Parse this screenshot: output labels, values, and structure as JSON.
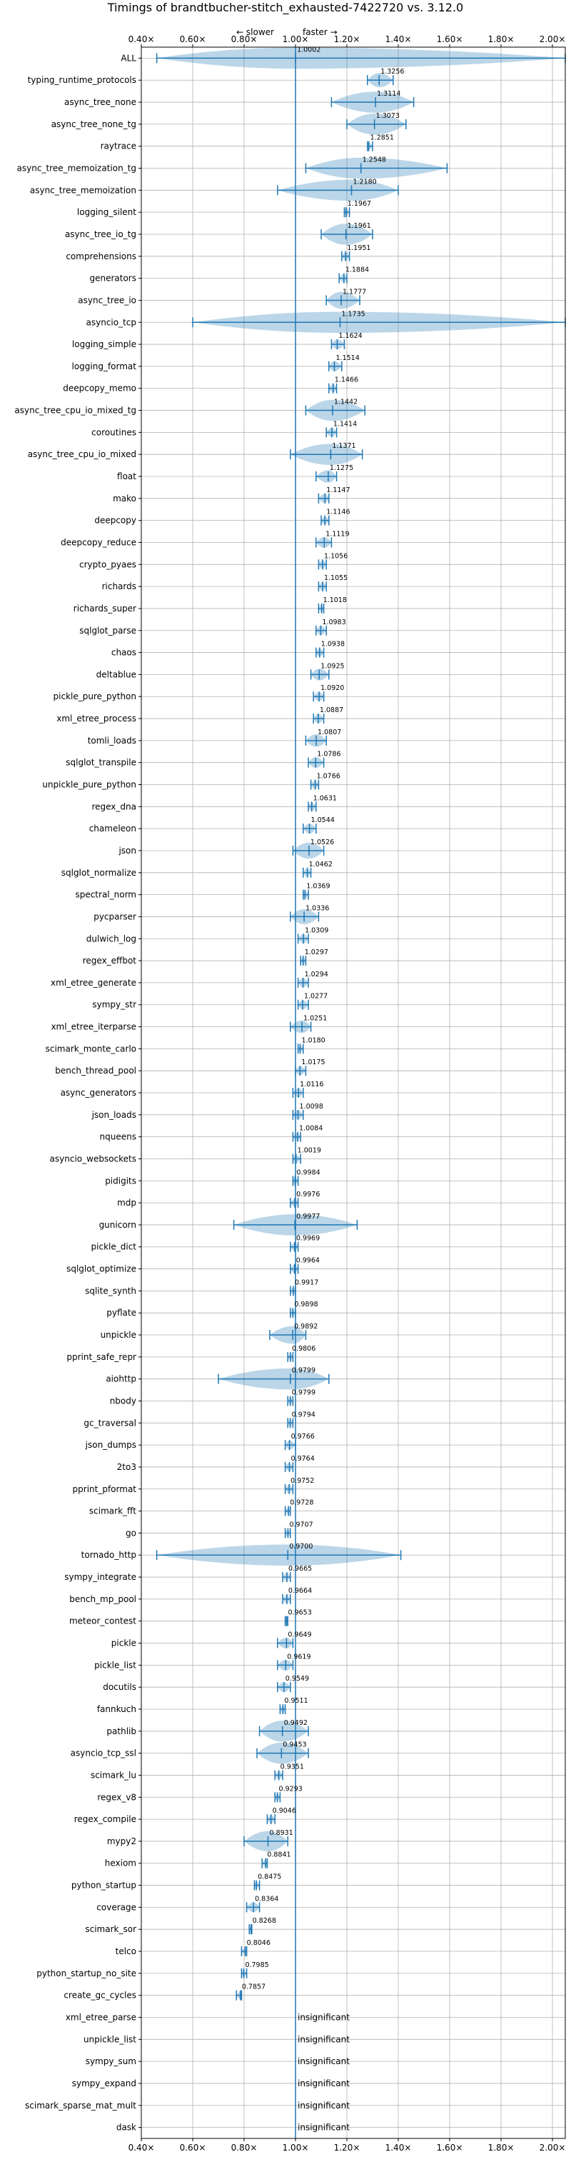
{
  "chart_data": {
    "type": "violin",
    "title": "Timings of brandtbucher-stitch_exhausted-7422720 vs. 3.12.0",
    "slower_label": "← slower",
    "faster_label": "faster →",
    "insignificant_label": "insignificant",
    "xlim": [
      0.4,
      2.05
    ],
    "xticks": [
      0.4,
      0.6,
      0.8,
      1.0,
      1.2,
      1.4,
      1.6,
      1.8,
      2.0
    ],
    "xtick_labels": [
      "0.40×",
      "0.60×",
      "0.80×",
      "1.00×",
      "1.20×",
      "1.40×",
      "1.60×",
      "1.80×",
      "2.00×"
    ],
    "reference_line": 1.0,
    "grid": true,
    "colors": {
      "line": "#1f77b4",
      "violin": "#1f77b4",
      "reference": "#1f77b4",
      "grid": "#b0b0b0"
    },
    "benchmarks": [
      {
        "name": "ALL",
        "value": "1.0002",
        "min": 0.46,
        "max": 2.05
      },
      {
        "name": "typing_runtime_protocols",
        "value": "1.3256",
        "min": 1.28,
        "max": 1.38
      },
      {
        "name": "async_tree_none",
        "value": "1.3114",
        "min": 1.14,
        "max": 1.46
      },
      {
        "name": "async_tree_none_tg",
        "value": "1.3073",
        "min": 1.2,
        "max": 1.43
      },
      {
        "name": "raytrace",
        "value": "1.2851",
        "min": 1.28,
        "max": 1.3
      },
      {
        "name": "async_tree_memoization_tg",
        "value": "1.2548",
        "min": 1.04,
        "max": 1.59
      },
      {
        "name": "async_tree_memoization",
        "value": "1.2180",
        "min": 0.93,
        "max": 1.4
      },
      {
        "name": "logging_silent",
        "value": "1.1967",
        "min": 1.19,
        "max": 1.21
      },
      {
        "name": "async_tree_io_tg",
        "value": "1.1961",
        "min": 1.1,
        "max": 1.3
      },
      {
        "name": "comprehensions",
        "value": "1.1951",
        "min": 1.18,
        "max": 1.21
      },
      {
        "name": "generators",
        "value": "1.1884",
        "min": 1.17,
        "max": 1.2
      },
      {
        "name": "async_tree_io",
        "value": "1.1777",
        "min": 1.12,
        "max": 1.25
      },
      {
        "name": "asyncio_tcp",
        "value": "1.1735",
        "min": 0.6,
        "max": 2.05
      },
      {
        "name": "logging_simple",
        "value": "1.1624",
        "min": 1.14,
        "max": 1.19
      },
      {
        "name": "logging_format",
        "value": "1.1514",
        "min": 1.13,
        "max": 1.18
      },
      {
        "name": "deepcopy_memo",
        "value": "1.1466",
        "min": 1.13,
        "max": 1.16
      },
      {
        "name": "async_tree_cpu_io_mixed_tg",
        "value": "1.1442",
        "min": 1.04,
        "max": 1.27
      },
      {
        "name": "coroutines",
        "value": "1.1414",
        "min": 1.12,
        "max": 1.16
      },
      {
        "name": "async_tree_cpu_io_mixed",
        "value": "1.1371",
        "min": 0.98,
        "max": 1.26
      },
      {
        "name": "float",
        "value": "1.1275",
        "min": 1.08,
        "max": 1.16
      },
      {
        "name": "mako",
        "value": "1.1147",
        "min": 1.09,
        "max": 1.13
      },
      {
        "name": "deepcopy",
        "value": "1.1146",
        "min": 1.1,
        "max": 1.13
      },
      {
        "name": "deepcopy_reduce",
        "value": "1.1119",
        "min": 1.08,
        "max": 1.14
      },
      {
        "name": "crypto_pyaes",
        "value": "1.1056",
        "min": 1.09,
        "max": 1.12
      },
      {
        "name": "richards",
        "value": "1.1055",
        "min": 1.09,
        "max": 1.12
      },
      {
        "name": "richards_super",
        "value": "1.1018",
        "min": 1.09,
        "max": 1.11
      },
      {
        "name": "sqlglot_parse",
        "value": "1.0983",
        "min": 1.08,
        "max": 1.12
      },
      {
        "name": "chaos",
        "value": "1.0938",
        "min": 1.08,
        "max": 1.11
      },
      {
        "name": "deltablue",
        "value": "1.0925",
        "min": 1.06,
        "max": 1.13
      },
      {
        "name": "pickle_pure_python",
        "value": "1.0920",
        "min": 1.07,
        "max": 1.11
      },
      {
        "name": "xml_etree_process",
        "value": "1.0887",
        "min": 1.07,
        "max": 1.11
      },
      {
        "name": "tomli_loads",
        "value": "1.0807",
        "min": 1.04,
        "max": 1.12
      },
      {
        "name": "sqlglot_transpile",
        "value": "1.0786",
        "min": 1.05,
        "max": 1.11
      },
      {
        "name": "unpickle_pure_python",
        "value": "1.0766",
        "min": 1.06,
        "max": 1.09
      },
      {
        "name": "regex_dna",
        "value": "1.0631",
        "min": 1.05,
        "max": 1.08
      },
      {
        "name": "chameleon",
        "value": "1.0544",
        "min": 1.03,
        "max": 1.08
      },
      {
        "name": "json",
        "value": "1.0526",
        "min": 0.99,
        "max": 1.11
      },
      {
        "name": "sqlglot_normalize",
        "value": "1.0462",
        "min": 1.03,
        "max": 1.06
      },
      {
        "name": "spectral_norm",
        "value": "1.0369",
        "min": 1.03,
        "max": 1.05
      },
      {
        "name": "pycparser",
        "value": "1.0336",
        "min": 0.98,
        "max": 1.09
      },
      {
        "name": "dulwich_log",
        "value": "1.0309",
        "min": 1.01,
        "max": 1.05
      },
      {
        "name": "regex_effbot",
        "value": "1.0297",
        "min": 1.02,
        "max": 1.04
      },
      {
        "name": "xml_etree_generate",
        "value": "1.0294",
        "min": 1.01,
        "max": 1.05
      },
      {
        "name": "sympy_str",
        "value": "1.0277",
        "min": 1.01,
        "max": 1.05
      },
      {
        "name": "xml_etree_iterparse",
        "value": "1.0251",
        "min": 0.98,
        "max": 1.06
      },
      {
        "name": "scimark_monte_carlo",
        "value": "1.0180",
        "min": 1.01,
        "max": 1.03
      },
      {
        "name": "bench_thread_pool",
        "value": "1.0175",
        "min": 1.0,
        "max": 1.04
      },
      {
        "name": "async_generators",
        "value": "1.0116",
        "min": 0.99,
        "max": 1.03
      },
      {
        "name": "json_loads",
        "value": "1.0098",
        "min": 0.99,
        "max": 1.03
      },
      {
        "name": "nqueens",
        "value": "1.0084",
        "min": 0.99,
        "max": 1.02
      },
      {
        "name": "asyncio_websockets",
        "value": "1.0019",
        "min": 0.99,
        "max": 1.02
      },
      {
        "name": "pidigits",
        "value": "0.9984",
        "min": 0.99,
        "max": 1.01
      },
      {
        "name": "mdp",
        "value": "0.9976",
        "min": 0.98,
        "max": 1.01
      },
      {
        "name": "gunicorn",
        "value": "0.9977",
        "min": 0.76,
        "max": 1.24
      },
      {
        "name": "pickle_dict",
        "value": "0.9969",
        "min": 0.98,
        "max": 1.01
      },
      {
        "name": "sqlglot_optimize",
        "value": "0.9964",
        "min": 0.98,
        "max": 1.01
      },
      {
        "name": "sqlite_synth",
        "value": "0.9917",
        "min": 0.98,
        "max": 1.0
      },
      {
        "name": "pyflate",
        "value": "0.9898",
        "min": 0.98,
        "max": 1.0
      },
      {
        "name": "unpickle",
        "value": "0.9892",
        "min": 0.9,
        "max": 1.04
      },
      {
        "name": "pprint_safe_repr",
        "value": "0.9806",
        "min": 0.97,
        "max": 0.99
      },
      {
        "name": "aiohttp",
        "value": "0.9799",
        "min": 0.7,
        "max": 1.13
      },
      {
        "name": "nbody",
        "value": "0.9799",
        "min": 0.97,
        "max": 0.99
      },
      {
        "name": "gc_traversal",
        "value": "0.9794",
        "min": 0.97,
        "max": 0.99
      },
      {
        "name": "json_dumps",
        "value": "0.9766",
        "min": 0.96,
        "max": 1.0
      },
      {
        "name": "2to3",
        "value": "0.9764",
        "min": 0.96,
        "max": 0.99
      },
      {
        "name": "pprint_pformat",
        "value": "0.9752",
        "min": 0.96,
        "max": 0.99
      },
      {
        "name": "scimark_fft",
        "value": "0.9728",
        "min": 0.96,
        "max": 0.98
      },
      {
        "name": "go",
        "value": "0.9707",
        "min": 0.96,
        "max": 0.98
      },
      {
        "name": "tornado_http",
        "value": "0.9700",
        "min": 0.46,
        "max": 1.41
      },
      {
        "name": "sympy_integrate",
        "value": "0.9665",
        "min": 0.95,
        "max": 0.98
      },
      {
        "name": "bench_mp_pool",
        "value": "0.9664",
        "min": 0.95,
        "max": 0.98
      },
      {
        "name": "meteor_contest",
        "value": "0.9653",
        "min": 0.96,
        "max": 0.97
      },
      {
        "name": "pickle",
        "value": "0.9649",
        "min": 0.93,
        "max": 0.99
      },
      {
        "name": "pickle_list",
        "value": "0.9619",
        "min": 0.93,
        "max": 0.99
      },
      {
        "name": "docutils",
        "value": "0.9549",
        "min": 0.93,
        "max": 0.98
      },
      {
        "name": "fannkuch",
        "value": "0.9511",
        "min": 0.94,
        "max": 0.96
      },
      {
        "name": "pathlib",
        "value": "0.9492",
        "min": 0.86,
        "max": 1.05
      },
      {
        "name": "asyncio_tcp_ssl",
        "value": "0.9453",
        "min": 0.85,
        "max": 1.05
      },
      {
        "name": "scimark_lu",
        "value": "0.9351",
        "min": 0.92,
        "max": 0.95
      },
      {
        "name": "regex_v8",
        "value": "0.9293",
        "min": 0.92,
        "max": 0.94
      },
      {
        "name": "regex_compile",
        "value": "0.9046",
        "min": 0.89,
        "max": 0.92
      },
      {
        "name": "mypy2",
        "value": "0.8931",
        "min": 0.8,
        "max": 0.97
      },
      {
        "name": "hexiom",
        "value": "0.8841",
        "min": 0.87,
        "max": 0.89
      },
      {
        "name": "python_startup",
        "value": "0.8475",
        "min": 0.84,
        "max": 0.86
      },
      {
        "name": "coverage",
        "value": "0.8364",
        "min": 0.81,
        "max": 0.86
      },
      {
        "name": "scimark_sor",
        "value": "0.8268",
        "min": 0.82,
        "max": 0.83
      },
      {
        "name": "telco",
        "value": "0.8046",
        "min": 0.79,
        "max": 0.81
      },
      {
        "name": "python_startup_no_site",
        "value": "0.7985",
        "min": 0.79,
        "max": 0.81
      },
      {
        "name": "create_gc_cycles",
        "value": "0.7857",
        "min": 0.77,
        "max": 0.79
      },
      {
        "name": "xml_etree_parse",
        "value": "insignificant"
      },
      {
        "name": "unpickle_list",
        "value": "insignificant"
      },
      {
        "name": "sympy_sum",
        "value": "insignificant"
      },
      {
        "name": "sympy_expand",
        "value": "insignificant"
      },
      {
        "name": "scimark_sparse_mat_mult",
        "value": "insignificant"
      },
      {
        "name": "dask",
        "value": "insignificant"
      }
    ]
  }
}
